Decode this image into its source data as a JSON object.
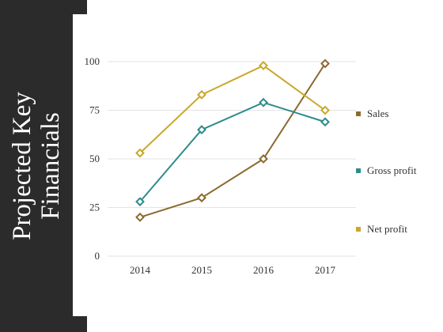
{
  "slide": {
    "title_lines": [
      "Projected Key",
      "Financials"
    ]
  },
  "chart_data": {
    "type": "line",
    "categories": [
      "2014",
      "2015",
      "2016",
      "2017"
    ],
    "ylim": [
      0,
      100
    ],
    "yticks": [
      0,
      25,
      50,
      75,
      100
    ],
    "grid": true,
    "legend_position": "right",
    "series": [
      {
        "name": "Sales",
        "color": "#8b6a2e",
        "values": [
          20,
          30,
          50,
          99
        ]
      },
      {
        "name": "Gross profit",
        "color": "#2e8b8b",
        "values": [
          28,
          65,
          79,
          69
        ]
      },
      {
        "name": "Net profit",
        "color": "#c9a82c",
        "values": [
          53,
          83,
          98,
          75
        ]
      }
    ],
    "marker": "diamond"
  }
}
